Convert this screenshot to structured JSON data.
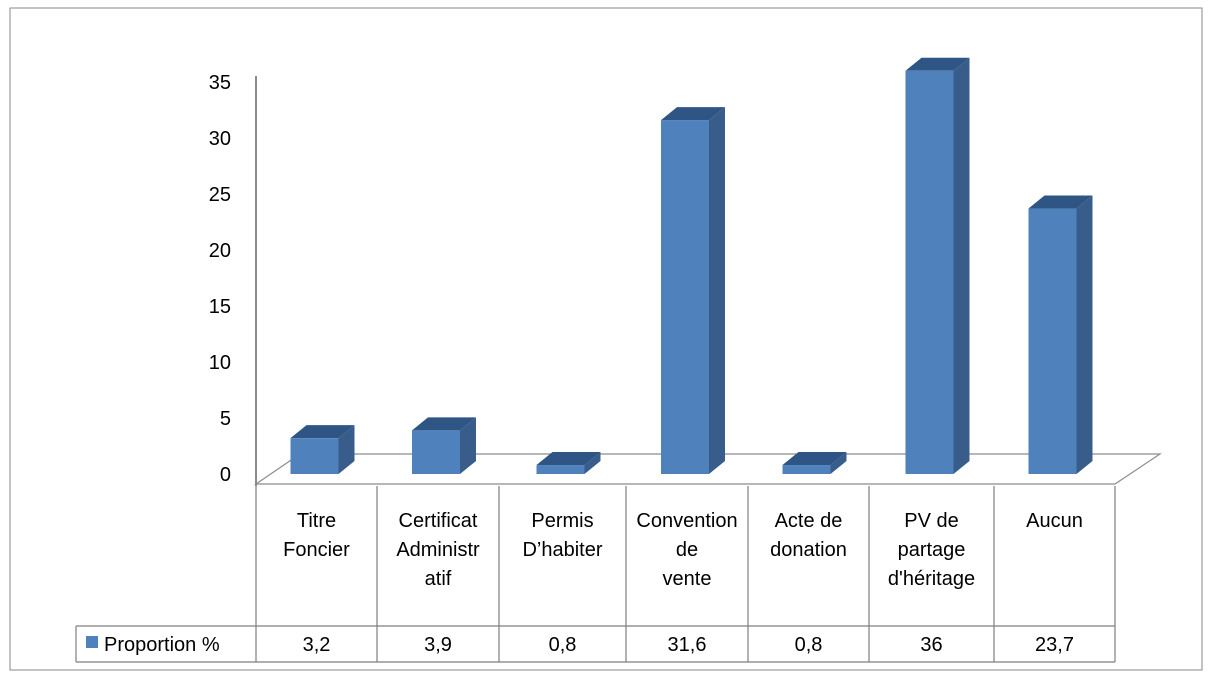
{
  "chart_data": {
    "type": "bar",
    "categories": [
      [
        "Titre",
        "Foncier"
      ],
      [
        "Certificat",
        "Administr",
        "atif"
      ],
      [
        "Permis",
        "D’habiter"
      ],
      [
        "Convention",
        "de",
        "vente"
      ],
      [
        "Acte de",
        "donation"
      ],
      [
        "PV de",
        "partage",
        "d'héritage"
      ],
      [
        "Aucun"
      ]
    ],
    "series": [
      {
        "name": "Proportion %",
        "values": [
          3.2,
          3.9,
          0.8,
          31.6,
          0.8,
          36,
          23.7
        ]
      }
    ],
    "value_labels": [
      "3,2",
      "3,9",
      "0,8",
      "31,6",
      "0,8",
      "36",
      "23,7"
    ],
    "y_ticks": [
      0,
      5,
      10,
      15,
      20,
      25,
      30,
      35
    ],
    "ylim": [
      0,
      35
    ],
    "title": "",
    "xlabel": "",
    "ylabel": "",
    "grid": false,
    "legend": "data-table",
    "colors": {
      "bar_front": "#4F81BD",
      "bar_side": "#385D8A",
      "bar_top": "#2F5585"
    }
  }
}
